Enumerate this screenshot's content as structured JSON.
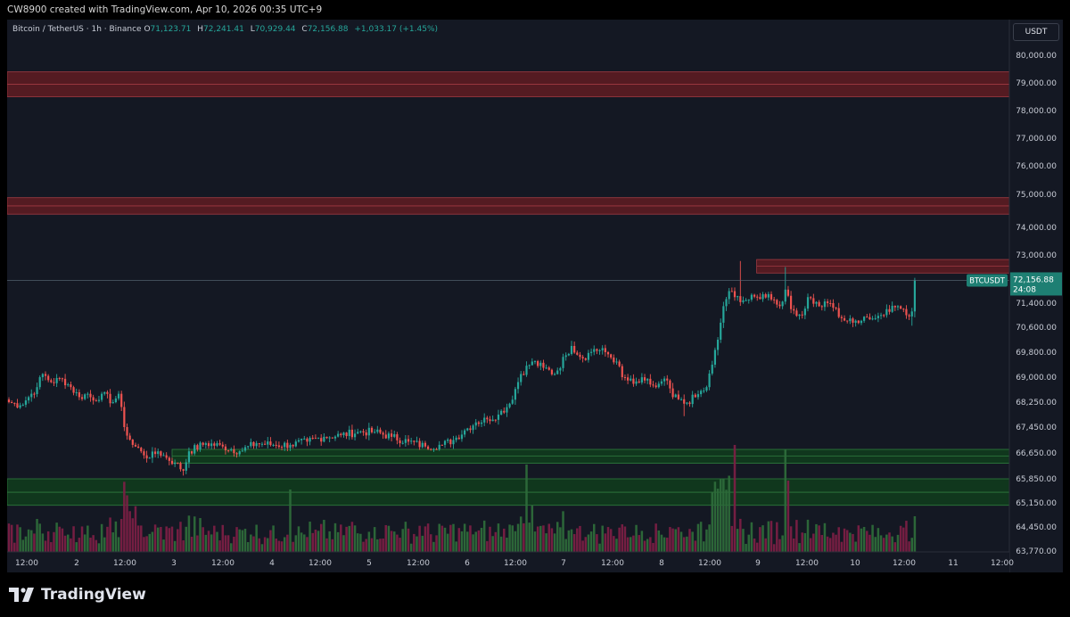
{
  "header": {
    "credit": "CW8900 created with TradingView.com, Apr 10, 2026 00:35 UTC+9"
  },
  "legend": {
    "symbol": "Bitcoin / TetherUS · 1h · Binance",
    "open_label": "O",
    "open": "71,123.71",
    "high_label": "H",
    "high": "72,241.41",
    "low_label": "L",
    "low": "70,929.44",
    "close_label": "C",
    "close": "72,156.88",
    "change": "+1,033.17 (+1.45%)"
  },
  "currency": "USDT",
  "price_tag": {
    "symbol": "BTCUSDT",
    "price": "72,156.88",
    "countdown": "24:08"
  },
  "footer": {
    "brand": "TradingView"
  },
  "colors": {
    "up": "#26a69a",
    "down": "#ef5350",
    "bg": "#141823",
    "zone_red": "#5b1c22",
    "zone_green": "#0f3b1d"
  },
  "chart_data": {
    "type": "candlestick",
    "y_tick_labels": [
      "80,000.00",
      "79,000.00",
      "78,000.00",
      "77,000.00",
      "76,000.00",
      "75,000.00",
      "74,000.00",
      "73,000.00",
      "71,400.00",
      "70,600.00",
      "69,800.00",
      "69,000.00",
      "68,250.00",
      "67,450.00",
      "66,650.00",
      "65,850.00",
      "65,150.00",
      "64,450.00",
      "63,770.00"
    ],
    "x_tick_labels": [
      "12:00",
      "2",
      "12:00",
      "3",
      "12:00",
      "4",
      "12:00",
      "5",
      "12:00",
      "6",
      "12:00",
      "7",
      "12:00",
      "8",
      "12:00",
      "9",
      "12:00",
      "10",
      "12:00",
      "11",
      "12:00"
    ],
    "last_price": 72156.88,
    "zones": [
      {
        "color": "red",
        "from": 78500,
        "to": 79400,
        "mid": 78950
      },
      {
        "color": "red",
        "from": 74400,
        "to": 74900,
        "mid": 74650
      },
      {
        "color": "red",
        "from": 72400,
        "to": 72850,
        "mid": 72625,
        "start_date": "Apr 8 22:00"
      },
      {
        "color": "green",
        "from": 66330,
        "to": 66760,
        "mid": 66550,
        "start_date": "Apr 3 00:00"
      },
      {
        "color": "green",
        "from": 65080,
        "to": 65850,
        "mid": 65460
      }
    ],
    "anchors_close": [
      {
        "t": 0,
        "v": 68250
      },
      {
        "t": 4,
        "v": 68150
      },
      {
        "t": 7,
        "v": 68400
      },
      {
        "t": 10,
        "v": 68700
      },
      {
        "t": 12,
        "v": 69100
      },
      {
        "t": 15,
        "v": 68850
      },
      {
        "t": 19,
        "v": 68950
      },
      {
        "t": 22,
        "v": 68700
      },
      {
        "t": 25,
        "v": 68400
      },
      {
        "t": 28,
        "v": 68500
      },
      {
        "t": 30,
        "v": 68300
      },
      {
        "t": 33,
        "v": 68500
      },
      {
        "t": 37,
        "v": 68250
      },
      {
        "t": 39,
        "v": 68500
      },
      {
        "t": 41,
        "v": 67450
      },
      {
        "t": 44,
        "v": 66900
      },
      {
        "t": 47,
        "v": 66700
      },
      {
        "t": 50,
        "v": 66500
      },
      {
        "t": 53,
        "v": 66700
      },
      {
        "t": 56,
        "v": 66500
      },
      {
        "t": 59,
        "v": 66350
      },
      {
        "t": 62,
        "v": 66100
      },
      {
        "t": 64,
        "v": 66700
      },
      {
        "t": 70,
        "v": 66950
      },
      {
        "t": 76,
        "v": 66850
      },
      {
        "t": 82,
        "v": 66700
      },
      {
        "t": 88,
        "v": 66950
      },
      {
        "t": 94,
        "v": 66900
      },
      {
        "t": 100,
        "v": 66900
      },
      {
        "t": 106,
        "v": 67000
      },
      {
        "t": 112,
        "v": 67150
      },
      {
        "t": 118,
        "v": 67200
      },
      {
        "t": 124,
        "v": 67300
      },
      {
        "t": 130,
        "v": 67300
      },
      {
        "t": 136,
        "v": 67150
      },
      {
        "t": 142,
        "v": 67000
      },
      {
        "t": 148,
        "v": 66850
      },
      {
        "t": 154,
        "v": 66900
      },
      {
        "t": 158,
        "v": 67050
      },
      {
        "t": 162,
        "v": 67350
      },
      {
        "t": 166,
        "v": 67600
      },
      {
        "t": 170,
        "v": 67700
      },
      {
        "t": 174,
        "v": 67850
      },
      {
        "t": 178,
        "v": 68200
      },
      {
        "t": 182,
        "v": 69100
      },
      {
        "t": 186,
        "v": 69500
      },
      {
        "t": 190,
        "v": 69300
      },
      {
        "t": 194,
        "v": 69100
      },
      {
        "t": 198,
        "v": 69700
      },
      {
        "t": 200,
        "v": 70000
      },
      {
        "t": 204,
        "v": 69600
      },
      {
        "t": 208,
        "v": 69900
      },
      {
        "t": 212,
        "v": 69800
      },
      {
        "t": 216,
        "v": 69500
      },
      {
        "t": 218,
        "v": 69000
      },
      {
        "t": 222,
        "v": 68800
      },
      {
        "t": 226,
        "v": 68900
      },
      {
        "t": 230,
        "v": 68700
      },
      {
        "t": 234,
        "v": 68900
      },
      {
        "t": 236,
        "v": 68400
      },
      {
        "t": 240,
        "v": 68200
      },
      {
        "t": 244,
        "v": 68400
      },
      {
        "t": 248,
        "v": 68700
      },
      {
        "t": 250,
        "v": 69400
      },
      {
        "t": 252,
        "v": 70200
      },
      {
        "t": 254,
        "v": 71300
      },
      {
        "t": 256,
        "v": 71800
      },
      {
        "t": 258,
        "v": 71600
      },
      {
        "t": 262,
        "v": 71500
      },
      {
        "t": 266,
        "v": 71600
      },
      {
        "t": 270,
        "v": 71700
      },
      {
        "t": 274,
        "v": 71300
      },
      {
        "t": 276,
        "v": 71850
      },
      {
        "t": 278,
        "v": 71200
      },
      {
        "t": 282,
        "v": 71000
      },
      {
        "t": 284,
        "v": 71600
      },
      {
        "t": 288,
        "v": 71300
      },
      {
        "t": 292,
        "v": 71400
      },
      {
        "t": 296,
        "v": 70900
      },
      {
        "t": 300,
        "v": 70750
      },
      {
        "t": 304,
        "v": 70950
      },
      {
        "t": 308,
        "v": 70900
      },
      {
        "t": 312,
        "v": 71200
      },
      {
        "t": 316,
        "v": 71300
      },
      {
        "t": 319,
        "v": 71000
      },
      {
        "t": 321,
        "v": 71123
      },
      {
        "t": 322,
        "v": 72157
      }
    ]
  }
}
